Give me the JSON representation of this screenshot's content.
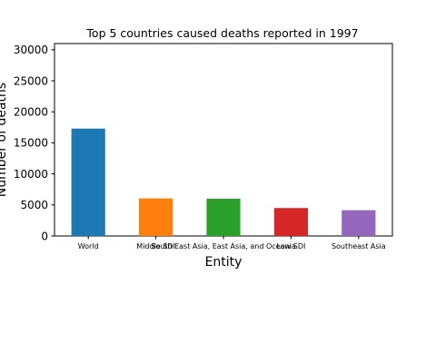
{
  "chart_data": {
    "type": "bar",
    "title": "Top 5 countries caused deaths reported in 1997",
    "xlabel": "Entity",
    "ylabel": "Number of deaths",
    "categories": [
      "World",
      "Middle SDI",
      "South East Asia, East Asia, and Oceania",
      "Low SDI",
      "Southeast Asia"
    ],
    "values": [
      17300,
      6050,
      6000,
      4500,
      4150
    ],
    "colors": [
      "#1f77b4",
      "#ff7f0e",
      "#2ca02c",
      "#d62728",
      "#9467bd"
    ],
    "ylim": [
      0,
      31000
    ],
    "yticks": [
      0,
      5000,
      10000,
      15000,
      20000,
      25000,
      30000
    ],
    "grid": false,
    "legend": "none"
  }
}
